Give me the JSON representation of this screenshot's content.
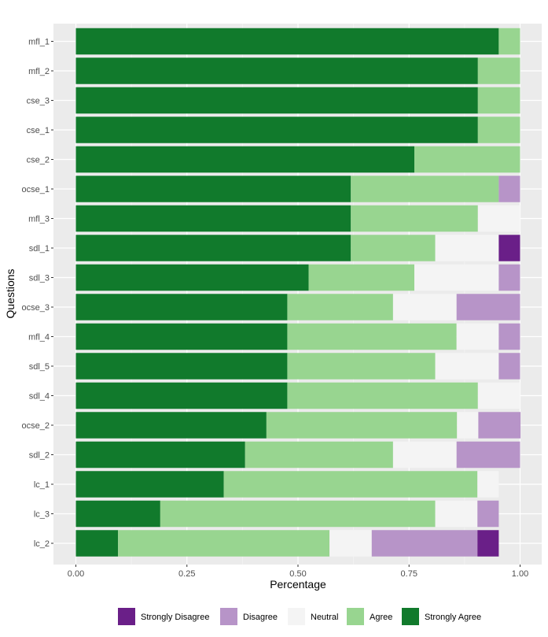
{
  "chart_data": {
    "type": "bar",
    "orientation": "horizontal",
    "stacked": true,
    "title": "",
    "xlabel": "Percentage",
    "ylabel": "Questions",
    "xlim": [
      0,
      1
    ],
    "xticks": [
      0,
      0.25,
      0.5,
      0.75,
      1
    ],
    "xtick_labels": [
      "0.00",
      "0.25",
      "0.50",
      "0.75",
      "1.00"
    ],
    "grid": true,
    "legend_position": "bottom",
    "categories": [
      "mfl_1",
      "mfl_2",
      "cse_3",
      "cse_1",
      "cse_2",
      "ocse_1",
      "mfl_3",
      "sdl_1",
      "sdl_3",
      "ocse_3",
      "mfl_4",
      "sdl_5",
      "sdl_4",
      "ocse_2",
      "sdl_2",
      "lc_1",
      "lc_3",
      "lc_2"
    ],
    "series": [
      {
        "name": "Strongly Agree",
        "color": "#117a2c",
        "values": [
          0.952,
          0.905,
          0.905,
          0.905,
          0.762,
          0.619,
          0.619,
          0.619,
          0.524,
          0.476,
          0.476,
          0.476,
          0.476,
          0.429,
          0.381,
          0.333,
          0.19,
          0.095
        ]
      },
      {
        "name": "Agree",
        "color": "#98d590",
        "values": [
          0.048,
          0.095,
          0.095,
          0.095,
          0.238,
          0.333,
          0.286,
          0.19,
          0.238,
          0.238,
          0.381,
          0.333,
          0.429,
          0.429,
          0.333,
          0.571,
          0.619,
          0.476
        ]
      },
      {
        "name": "Neutral",
        "color": "#f4f4f4",
        "values": [
          0,
          0,
          0,
          0,
          0,
          0,
          0.095,
          0.143,
          0.19,
          0.143,
          0.095,
          0.143,
          0.095,
          0.048,
          0.143,
          0.048,
          0.095,
          0.095
        ]
      },
      {
        "name": "Disagree",
        "color": "#b794c8",
        "values": [
          0,
          0,
          0,
          0,
          0,
          0.048,
          0,
          0,
          0.048,
          0.143,
          0.048,
          0.048,
          0,
          0.095,
          0.143,
          0,
          0.048,
          0.238
        ]
      },
      {
        "name": "Strongly Disagree",
        "color": "#6a1f88",
        "values": [
          0,
          0,
          0,
          0,
          0,
          0,
          0,
          0.048,
          0,
          0,
          0,
          0,
          0,
          0,
          0,
          0,
          0,
          0.048
        ]
      }
    ],
    "legend_order": [
      "Strongly Disagree",
      "Disagree",
      "Neutral",
      "Agree",
      "Strongly Agree"
    ]
  }
}
